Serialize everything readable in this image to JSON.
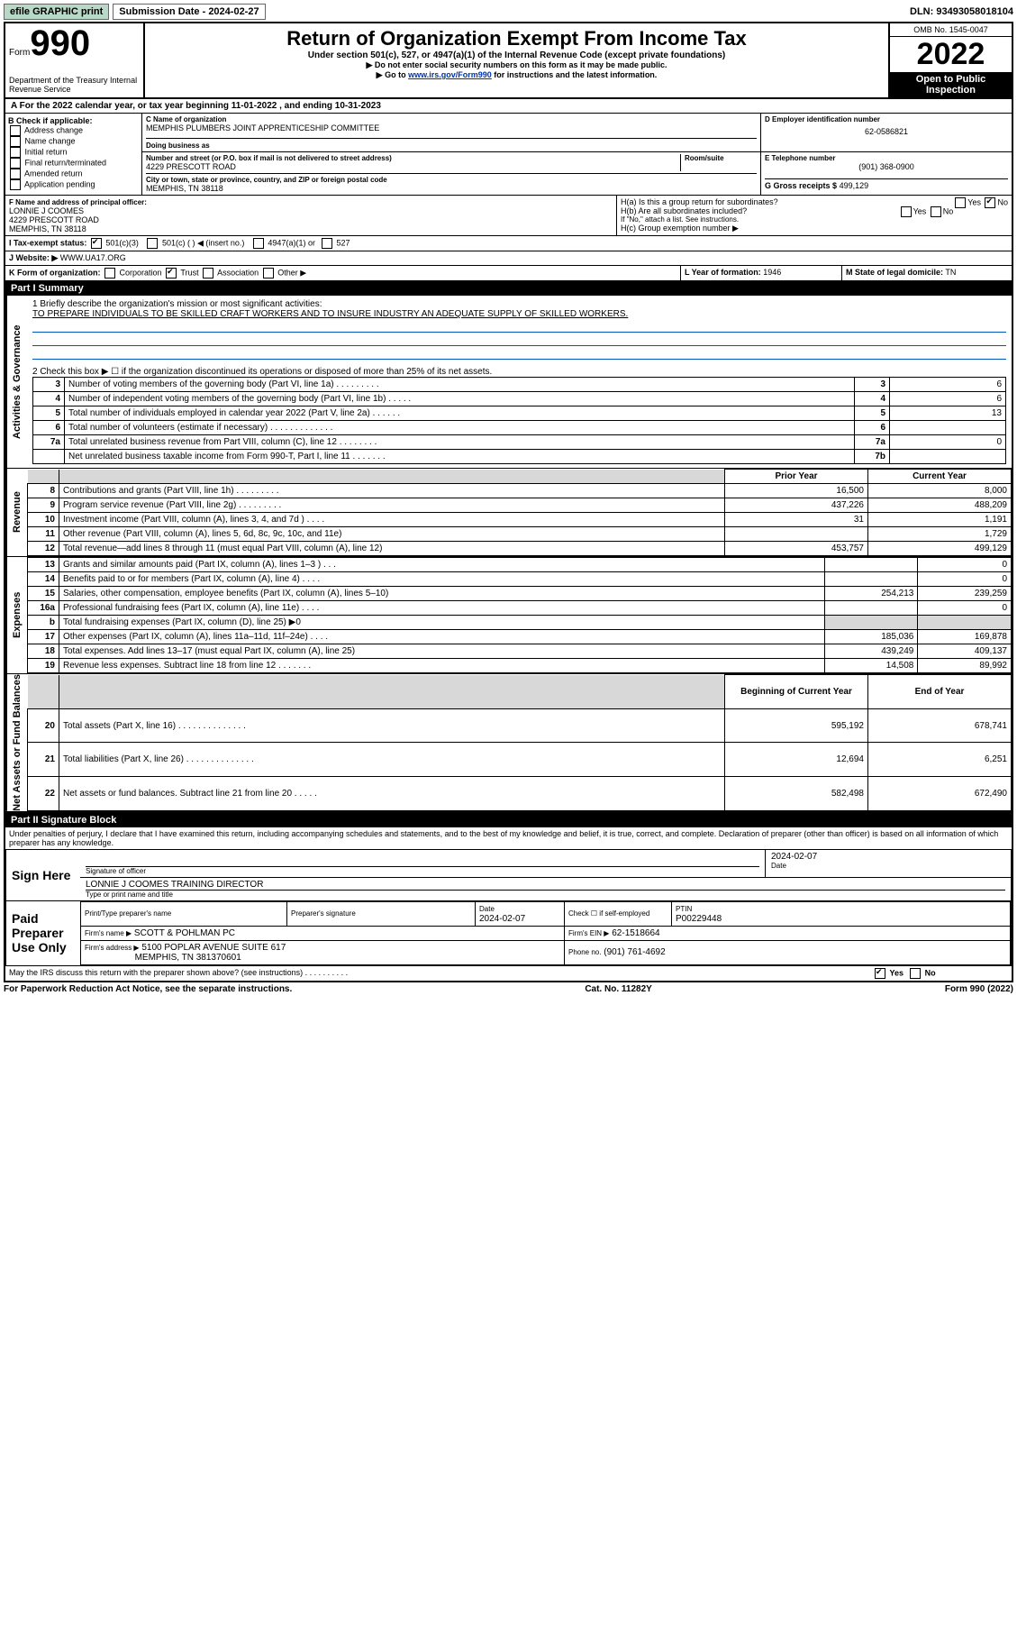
{
  "topbar": {
    "efile": "efile GRAPHIC print",
    "sub_label": "Submission Date - 2024-02-27",
    "dln": "DLN: 93493058018104"
  },
  "hdr": {
    "form_word": "Form",
    "form_num": "990",
    "dept": "Department of the Treasury\nInternal Revenue Service",
    "title": "Return of Organization Exempt From Income Tax",
    "sub": "Under section 501(c), 527, or 4947(a)(1) of the Internal Revenue Code (except private foundations)",
    "note1": "▶ Do not enter social security numbers on this form as it may be made public.",
    "note2_pre": "▶ Go to ",
    "note2_link": "www.irs.gov/Form990",
    "note2_post": " for instructions and the latest information.",
    "omb": "OMB No. 1545-0047",
    "year": "2022",
    "open": "Open to Public Inspection"
  },
  "rowA": "A For the 2022 calendar year, or tax year beginning 11-01-2022    , and ending 10-31-2023",
  "B": {
    "label": "B Check if applicable:",
    "items": [
      "Address change",
      "Name change",
      "Initial return",
      "Final return/terminated",
      "Amended return",
      "Application pending"
    ]
  },
  "C": {
    "label": "C Name of organization",
    "name": "MEMPHIS PLUMBERS JOINT APPRENTICESHIP COMMITTEE",
    "dba_label": "Doing business as",
    "street_label": "Number and street (or P.O. box if mail is not delivered to street address)",
    "room_label": "Room/suite",
    "street": "4229 PRESCOTT ROAD",
    "city_label": "City or town, state or province, country, and ZIP or foreign postal code",
    "city": "MEMPHIS, TN  38118"
  },
  "D": {
    "label": "D Employer identification number",
    "val": "62-0586821"
  },
  "E": {
    "label": "E Telephone number",
    "val": "(901) 368-0900"
  },
  "G": {
    "label": "G Gross receipts $",
    "val": "499,129"
  },
  "F": {
    "label": "F Name and address of principal officer:",
    "name": "LONNIE J COOMES",
    "street": "4229 PRESCOTT ROAD",
    "city": "MEMPHIS, TN  38118"
  },
  "H": {
    "a": "H(a)  Is this a group return for subordinates?",
    "b": "H(b)  Are all subordinates included?",
    "b_note": "If \"No,\" attach a list. See instructions.",
    "c": "H(c)  Group exemption number ▶",
    "yes": "Yes",
    "no": "No"
  },
  "I": {
    "label": "I    Tax-exempt status:",
    "o1": "501(c)(3)",
    "o2": "501(c) (  ) ◀ (insert no.)",
    "o3": "4947(a)(1) or",
    "o4": "527"
  },
  "J": {
    "label": "J    Website: ▶",
    "val": "WWW.UA17.ORG"
  },
  "K": {
    "label": "K Form of organization:",
    "o1": "Corporation",
    "o2": "Trust",
    "o3": "Association",
    "o4": "Other ▶"
  },
  "L": {
    "label": "L Year of formation:",
    "val": "1946"
  },
  "M": {
    "label": "M State of legal domicile:",
    "val": "TN"
  },
  "part1": "Part I     Summary",
  "sections": {
    "ag": "Activities & Governance",
    "rev": "Revenue",
    "exp": "Expenses",
    "na": "Net Assets or Fund Balances"
  },
  "p1": {
    "l1": "1   Briefly describe the organization's mission or most significant activities:",
    "l1v": "TO PREPARE INDIVIDUALS TO BE SKILLED CRAFT WORKERS AND TO INSURE INDUSTRY AN ADEQUATE SUPPLY OF SKILLED WORKERS.",
    "l2": "2   Check this box ▶ ☐  if the organization discontinued its operations or disposed of more than 25% of its net assets.",
    "rows_ag": [
      {
        "n": "3",
        "d": "Number of voting members of the governing body (Part VI, line 1a)   .    .    .    .    .    .    .    .    .",
        "b": "3",
        "v": "6"
      },
      {
        "n": "4",
        "d": "Number of independent voting members of the governing body (Part VI, line 1b)   .    .    .    .    .",
        "b": "4",
        "v": "6"
      },
      {
        "n": "5",
        "d": "Total number of individuals employed in calendar year 2022 (Part V, line 2a)   .    .    .    .    .    .",
        "b": "5",
        "v": "13"
      },
      {
        "n": "6",
        "d": "Total number of volunteers (estimate if necessary)   .    .    .    .    .    .    .    .    .    .    .    .    .",
        "b": "6",
        "v": ""
      },
      {
        "n": "7a",
        "d": "Total unrelated business revenue from Part VIII, column (C), line 12   .    .    .    .    .    .    .    .",
        "b": "7a",
        "v": "0"
      },
      {
        "n": "",
        "d": "Net unrelated business taxable income from Form 990-T, Part I, line 11   .    .    .    .    .    .    .",
        "b": "7b",
        "v": ""
      }
    ],
    "col_py": "Prior Year",
    "col_cy": "Current Year",
    "rows_rev": [
      {
        "n": "8",
        "d": "Contributions and grants (Part VIII, line 1h)   .    .    .    .    .    .    .    .    .",
        "py": "16,500",
        "cy": "8,000"
      },
      {
        "n": "9",
        "d": "Program service revenue (Part VIII, line 2g)   .    .    .    .    .    .    .    .    .",
        "py": "437,226",
        "cy": "488,209"
      },
      {
        "n": "10",
        "d": "Investment income (Part VIII, column (A), lines 3, 4, and 7d )   .    .    .    .",
        "py": "31",
        "cy": "1,191"
      },
      {
        "n": "11",
        "d": "Other revenue (Part VIII, column (A), lines 5, 6d, 8c, 9c, 10c, and 11e)",
        "py": "",
        "cy": "1,729"
      },
      {
        "n": "12",
        "d": "Total revenue—add lines 8 through 11 (must equal Part VIII, column (A), line 12)",
        "py": "453,757",
        "cy": "499,129"
      }
    ],
    "rows_exp": [
      {
        "n": "13",
        "d": "Grants and similar amounts paid (Part IX, column (A), lines 1–3 )   .    .    .",
        "py": "",
        "cy": "0"
      },
      {
        "n": "14",
        "d": "Benefits paid to or for members (Part IX, column (A), line 4)   .    .    .    .",
        "py": "",
        "cy": "0"
      },
      {
        "n": "15",
        "d": "Salaries, other compensation, employee benefits (Part IX, column (A), lines 5–10)",
        "py": "254,213",
        "cy": "239,259"
      },
      {
        "n": "16a",
        "d": "Professional fundraising fees (Part IX, column (A), line 11e)   .    .    .    .",
        "py": "",
        "cy": "0"
      },
      {
        "n": "b",
        "d": "Total fundraising expenses (Part IX, column (D), line 25) ▶0",
        "py": "SHADE",
        "cy": "SHADE"
      },
      {
        "n": "17",
        "d": "Other expenses (Part IX, column (A), lines 11a–11d, 11f–24e)   .    .    .    .",
        "py": "185,036",
        "cy": "169,878"
      },
      {
        "n": "18",
        "d": "Total expenses. Add lines 13–17 (must equal Part IX, column (A), line 25)",
        "py": "439,249",
        "cy": "409,137"
      },
      {
        "n": "19",
        "d": "Revenue less expenses. Subtract line 18 from line 12   .    .    .    .    .    .    .",
        "py": "14,508",
        "cy": "89,992"
      }
    ],
    "col_boy": "Beginning of Current Year",
    "col_eoy": "End of Year",
    "rows_na": [
      {
        "n": "20",
        "d": "Total assets (Part X, line 16)   .    .    .    .    .    .    .    .    .    .    .    .    .    .",
        "py": "595,192",
        "cy": "678,741"
      },
      {
        "n": "21",
        "d": "Total liabilities (Part X, line 26)   .    .    .    .    .    .    .    .    .    .    .    .    .    .",
        "py": "12,694",
        "cy": "6,251"
      },
      {
        "n": "22",
        "d": "Net assets or fund balances. Subtract line 21 from line 20   .    .    .    .    .",
        "py": "582,498",
        "cy": "672,490"
      }
    ]
  },
  "part2": "Part II    Signature Block",
  "perjury": "Under penalties of perjury, I declare that I have examined this return, including accompanying schedules and statements, and to the best of my knowledge and belief, it is true, correct, and complete. Declaration of preparer (other than officer) is based on all information of which preparer has any knowledge.",
  "sign": {
    "here": "Sign Here",
    "sig_officer": "Signature of officer",
    "date": "Date",
    "date_v": "2024-02-07",
    "name": "LONNIE J COOMES  TRAINING DIRECTOR",
    "name_lbl": "Type or print name and title"
  },
  "paid": {
    "title": "Paid Preparer Use Only",
    "h1": "Print/Type preparer's name",
    "h2": "Preparer's signature",
    "h3": "Date",
    "h3v": "2024-02-07",
    "h4": "Check ☐ if self-employed",
    "h5": "PTIN",
    "h5v": "P00229448",
    "firm_lbl": "Firm's name   ▶",
    "firm": "SCOTT & POHLMAN PC",
    "ein_lbl": "Firm's EIN ▶",
    "ein": "62-1518664",
    "addr_lbl": "Firm's address ▶",
    "addr": "5100 POPLAR AVENUE SUITE 617",
    "addr2": "MEMPHIS, TN  381370601",
    "ph_lbl": "Phone no.",
    "ph": "(901) 761-4692"
  },
  "may": "May the IRS discuss this return with the preparer shown above? (see instructions)   .    .    .    .    .    .    .    .    .    .",
  "footer": {
    "l": "For Paperwork Reduction Act Notice, see the separate instructions.",
    "c": "Cat. No. 11282Y",
    "r": "Form 990 (2022)"
  }
}
